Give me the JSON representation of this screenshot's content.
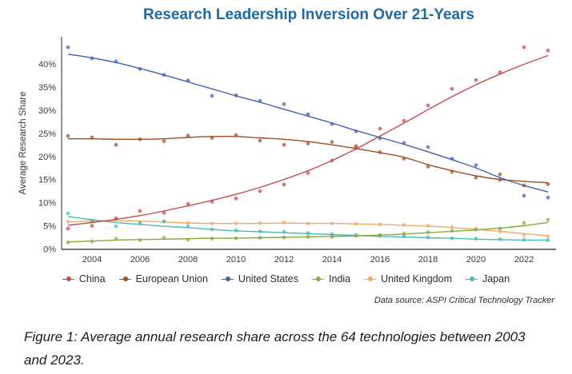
{
  "title": "Research Leadership Inversion Over 21-Years",
  "source_note": "Data source: ASPI Critical Technology Tracker",
  "caption": {
    "line1": "Figure 1: Average annual research share across the 64 technologies between 2003",
    "line2": "and 2023."
  },
  "colors": {
    "title_blue": "#1d6aa5",
    "axis_line": "#4a4a4a",
    "tick_text": "#3a3a3a",
    "legend_text": "#2e2e2e"
  },
  "chart_data": {
    "type": "scatter",
    "title": "Research Leadership Inversion Over 21-Years",
    "xlabel": "",
    "ylabel": "Average Research Share",
    "x": [
      2003,
      2004,
      2005,
      2006,
      2007,
      2008,
      2009,
      2010,
      2011,
      2012,
      2013,
      2014,
      2015,
      2016,
      2017,
      2018,
      2019,
      2020,
      2021,
      2022,
      2023
    ],
    "xticks": [
      2004,
      2006,
      2008,
      2010,
      2012,
      2014,
      2016,
      2018,
      2020,
      2022
    ],
    "yticks_pct": [
      0,
      5,
      10,
      15,
      20,
      25,
      30,
      35,
      40
    ],
    "ytick_labels": [
      "0%",
      "5%",
      "10%",
      "15%",
      "20%",
      "25%",
      "30%",
      "35%",
      "40%"
    ],
    "ylim": [
      0,
      46
    ],
    "grid": false,
    "legend_position": "bottom",
    "series": [
      {
        "name": "China",
        "color": "#c64b4b",
        "points": [
          4.5,
          5.1,
          6.7,
          8.3,
          7.9,
          9.8,
          10.3,
          11.0,
          12.6,
          14.0,
          16.5,
          19.2,
          21.9,
          26.1,
          27.8,
          31.1,
          34.7,
          36.6,
          38.3,
          43.7,
          43.0
        ],
        "trend": [
          5.2,
          5.8,
          6.5,
          7.3,
          8.3,
          9.4,
          10.6,
          11.9,
          13.4,
          15.1,
          17.0,
          19.2,
          21.7,
          24.5,
          27.3,
          30.2,
          33.0,
          35.6,
          37.9,
          40.0,
          41.9
        ]
      },
      {
        "name": "European Union",
        "color": "#9e4e26",
        "points": [
          24.5,
          24.2,
          22.6,
          23.8,
          23.4,
          24.6,
          24.1,
          24.7,
          23.5,
          22.6,
          22.9,
          23.2,
          22.3,
          21.0,
          19.6,
          17.9,
          16.8,
          15.5,
          16.2,
          13.8,
          14.1
        ],
        "trend": [
          23.9,
          23.9,
          23.8,
          23.8,
          23.9,
          24.2,
          24.4,
          24.4,
          24.1,
          23.8,
          23.3,
          22.6,
          21.8,
          20.9,
          19.9,
          18.3,
          17.0,
          15.9,
          15.1,
          14.7,
          14.4
        ]
      },
      {
        "name": "United States",
        "color": "#3e62ad",
        "points": [
          43.7,
          41.3,
          40.6,
          39.0,
          37.7,
          36.5,
          33.2,
          33.3,
          32.1,
          31.4,
          29.2,
          27.1,
          25.5,
          24.0,
          23.0,
          22.1,
          19.6,
          18.2,
          15.0,
          11.6,
          11.2
        ],
        "trend": [
          42.2,
          41.4,
          40.4,
          39.1,
          37.7,
          36.2,
          34.7,
          33.2,
          31.8,
          30.3,
          28.8,
          27.3,
          25.7,
          24.2,
          22.7,
          21.1,
          19.4,
          17.6,
          15.5,
          13.8,
          12.4
        ]
      },
      {
        "name": "India",
        "color": "#86a93e",
        "points": [
          1.5,
          1.7,
          2.3,
          2.0,
          2.5,
          2.1,
          2.3,
          2.4,
          2.5,
          2.6,
          2.7,
          2.7,
          2.9,
          3.1,
          3.4,
          3.7,
          4.0,
          4.3,
          4.5,
          5.7,
          6.4
        ],
        "trend": [
          1.6,
          1.8,
          2.0,
          2.1,
          2.2,
          2.3,
          2.4,
          2.4,
          2.5,
          2.6,
          2.7,
          2.8,
          2.9,
          3.1,
          3.3,
          3.6,
          3.9,
          4.2,
          4.6,
          5.1,
          5.8
        ]
      },
      {
        "name": "United Kingdom",
        "color": "#ecaa6b",
        "points": [
          6.0,
          6.2,
          6.4,
          5.9,
          6.1,
          5.7,
          5.6,
          5.6,
          5.7,
          5.8,
          5.6,
          5.6,
          5.5,
          5.4,
          5.3,
          5.1,
          4.8,
          4.4,
          3.8,
          3.1,
          2.8
        ],
        "trend": [
          5.9,
          6.1,
          6.2,
          6.1,
          5.9,
          5.7,
          5.6,
          5.6,
          5.6,
          5.7,
          5.6,
          5.6,
          5.5,
          5.4,
          5.2,
          5.0,
          4.7,
          4.3,
          3.9,
          3.4,
          2.9
        ]
      },
      {
        "name": "Japan",
        "color": "#48bcb1",
        "points": [
          7.8,
          6.1,
          5.0,
          5.6,
          6.0,
          5.0,
          4.3,
          4.1,
          3.9,
          3.8,
          3.5,
          3.3,
          3.1,
          2.9,
          2.8,
          2.6,
          2.4,
          2.3,
          2.2,
          2.1,
          2.0
        ],
        "trend": [
          7.1,
          6.4,
          5.8,
          5.4,
          5.0,
          4.7,
          4.3,
          4.0,
          3.8,
          3.6,
          3.4,
          3.2,
          3.0,
          2.8,
          2.7,
          2.5,
          2.4,
          2.2,
          2.1,
          2.0,
          2.0
        ]
      }
    ]
  }
}
